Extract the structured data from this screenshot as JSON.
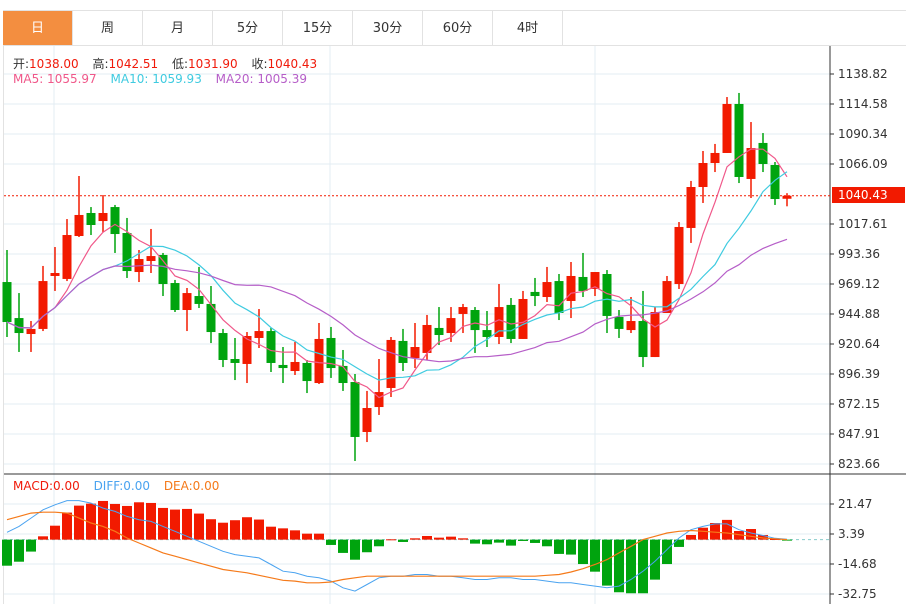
{
  "tabs": [
    {
      "label": "日",
      "active": true
    },
    {
      "label": "周"
    },
    {
      "label": "月"
    },
    {
      "label": "5分"
    },
    {
      "label": "15分"
    },
    {
      "label": "30分"
    },
    {
      "label": "60分"
    },
    {
      "label": "4时"
    }
  ],
  "ohlc_info": {
    "open_label": "开:",
    "open": "1038.00",
    "high_label": "高:",
    "high": "1042.51",
    "low_label": "低:",
    "low": "1031.90",
    "close_label": "收:",
    "close": "1040.43"
  },
  "ma_info": {
    "ma5": "MA5: 1055.97",
    "ma10": "MA10: 1059.93",
    "ma20": "MA20: 1005.39"
  },
  "macd_info": {
    "macd": "MACD:0.00",
    "diff": "DIFF:0.00",
    "dea": "DEA:0.00"
  },
  "colors": {
    "up": "#f21a00",
    "down": "#00a40e",
    "ma5": "#f0588a",
    "ma10": "#3fcbe0",
    "ma20": "#b65ec8",
    "diff": "#4aa3f0",
    "dea": "#f57a1a",
    "grid": "#e3ecf3",
    "active_tab": "#f38e40"
  },
  "price_axis": [
    "1138.82",
    "1114.58",
    "1090.34",
    "1066.09",
    "1017.61",
    "993.36",
    "969.12",
    "944.88",
    "920.64",
    "896.39",
    "872.15",
    "847.91",
    "823.66"
  ],
  "current_price": "1040.43",
  "macd_axis": [
    "21.47",
    "3.39",
    "-14.68",
    "-32.75"
  ],
  "chart_data": {
    "type": "candlestick",
    "price_range": [
      823.66,
      1138.82
    ],
    "candles": [
      [
        970.7,
        996.6,
        926.3,
        938.4
      ],
      [
        941.6,
        961.8,
        914.2,
        929.5
      ],
      [
        928.7,
        939.2,
        914.2,
        932.8
      ],
      [
        932.8,
        983.7,
        931.1,
        971.5
      ],
      [
        975.6,
        999.0,
        963.5,
        978.0
      ],
      [
        973.2,
        1021.6,
        971.5,
        1008.7
      ],
      [
        1007.9,
        1056.4,
        1007.1,
        1024.9
      ],
      [
        1026.5,
        1031.3,
        1008.7,
        1016.8
      ],
      [
        1020.0,
        1041.0,
        1011.1,
        1026.5
      ],
      [
        1031.3,
        1033.0,
        994.2,
        1009.5
      ],
      [
        1010.3,
        1022.5,
        974.0,
        979.6
      ],
      [
        978.8,
        996.6,
        970.7,
        989.3
      ],
      [
        987.7,
        1013.6,
        978.0,
        991.7
      ],
      [
        992.6,
        994.2,
        959.4,
        969.1
      ],
      [
        969.9,
        972.4,
        946.5,
        948.1
      ],
      [
        948.1,
        965.9,
        931.1,
        961.8
      ],
      [
        959.4,
        982.9,
        949.7,
        953.0
      ],
      [
        953.0,
        967.5,
        921.4,
        930.3
      ],
      [
        929.5,
        932.8,
        902.0,
        907.7
      ],
      [
        908.5,
        925.5,
        891.5,
        905.3
      ],
      [
        904.5,
        930.3,
        889.1,
        927.1
      ],
      [
        925.5,
        948.9,
        917.4,
        931.1
      ],
      [
        931.1,
        933.6,
        898.0,
        905.3
      ],
      [
        903.7,
        918.2,
        889.1,
        901.2
      ],
      [
        898.8,
        922.3,
        895.6,
        906.1
      ],
      [
        905.3,
        907.7,
        881.0,
        890.7
      ],
      [
        889.1,
        937.6,
        888.3,
        924.7
      ],
      [
        925.5,
        934.4,
        893.2,
        901.2
      ],
      [
        902.9,
        915.8,
        882.7,
        889.1
      ],
      [
        889.9,
        896.4,
        826.1,
        845.5
      ],
      [
        849.5,
        882.7,
        841.4,
        868.9
      ],
      [
        869.7,
        908.5,
        863.3,
        881.8
      ],
      [
        885.1,
        926.3,
        877.8,
        923.9
      ],
      [
        923.1,
        932.8,
        898.8,
        905.3
      ],
      [
        909.3,
        937.6,
        901.2,
        918.2
      ],
      [
        913.4,
        944.1,
        907.7,
        936.0
      ],
      [
        933.6,
        950.5,
        919.8,
        927.9
      ],
      [
        929.5,
        950.5,
        922.3,
        941.6
      ],
      [
        944.9,
        953.0,
        929.5,
        950.5
      ],
      [
        948.1,
        950.5,
        913.4,
        931.9
      ],
      [
        931.9,
        947.3,
        918.2,
        926.3
      ],
      [
        926.3,
        969.1,
        920.6,
        950.5
      ],
      [
        952.2,
        957.8,
        921.4,
        924.7
      ],
      [
        924.7,
        963.5,
        924.7,
        957.0
      ],
      [
        962.7,
        974.0,
        951.3,
        959.4
      ],
      [
        958.6,
        982.9,
        954.6,
        970.7
      ],
      [
        971.5,
        977.2,
        940.0,
        945.7
      ],
      [
        955.4,
        986.9,
        941.6,
        975.6
      ],
      [
        974.8,
        994.2,
        958.6,
        963.5
      ],
      [
        965.1,
        978.8,
        959.4,
        978.8
      ],
      [
        977.2,
        980.4,
        929.5,
        943.3
      ],
      [
        942.5,
        948.1,
        925.5,
        932.8
      ],
      [
        931.9,
        958.6,
        929.5,
        939.2
      ],
      [
        939.2,
        963.5,
        902.0,
        910.1
      ],
      [
        910.1,
        950.5,
        910.1,
        946.5
      ],
      [
        945.7,
        975.6,
        945.7,
        971.5
      ],
      [
        969.1,
        1019.2,
        965.1,
        1015.2
      ],
      [
        1014.4,
        1052.4,
        1002.3,
        1047.5
      ],
      [
        1047.5,
        1076.6,
        1034.6,
        1066.9
      ],
      [
        1066.9,
        1082.3,
        1059.6,
        1075.0
      ],
      [
        1075.0,
        1120.2,
        1075.0,
        1114.6
      ],
      [
        1114.6,
        1123.5,
        1050.7,
        1055.6
      ],
      [
        1054.0,
        1100.0,
        1038.6,
        1079.0
      ],
      [
        1083.1,
        1091.1,
        1059.6,
        1066.1
      ],
      [
        1065.3,
        1067.7,
        1033.0,
        1037.8
      ],
      [
        1038.0,
        1042.51,
        1031.9,
        1040.43
      ]
    ],
    "macd_range": [
      -32.75,
      21.47
    ],
    "macd_hist": [
      -15.7,
      -13.3,
      -7.2,
      2.0,
      8.4,
      16.3,
      20.5,
      21.7,
      23.3,
      21.5,
      20.3,
      22.5,
      22.1,
      19.1,
      18.1,
      18.5,
      15.7,
      12.3,
      10.2,
      11.7,
      13.5,
      12.1,
      7.8,
      6.8,
      5.6,
      3.6,
      3.6,
      -3.2,
      -8.0,
      -12.1,
      -7.6,
      -4.0,
      0.2,
      -1.4,
      0.8,
      2.2,
      1.2,
      1.8,
      0.8,
      -2.4,
      -2.8,
      -1.8,
      -3.6,
      -0.8,
      -2.0,
      -4.0,
      -8.6,
      -9.0,
      -14.7,
      -19.3,
      -27.7,
      -31.7,
      -32.3,
      -32.3,
      -24.1,
      -14.7,
      -4.4,
      2.8,
      7.2,
      10.0,
      11.9,
      5.2,
      6.4,
      2.8,
      0.4,
      -0.1
    ],
    "diff": [
      4.4,
      8,
      13,
      18,
      21,
      23.5,
      23.5,
      22,
      19,
      17,
      14,
      12,
      11,
      8,
      5,
      2,
      -1,
      -4,
      -7,
      -9,
      -10,
      -11,
      -15,
      -19,
      -20,
      -22,
      -23,
      -25,
      -29,
      -31,
      -27,
      -23,
      -22,
      -22,
      -21,
      -21,
      -22,
      -22,
      -23,
      -24,
      -24,
      -23,
      -23,
      -24,
      -24,
      -25,
      -26,
      -26,
      -27,
      -28,
      -29,
      -28,
      -24,
      -19,
      -13,
      -6,
      1,
      6,
      8,
      9.5,
      9.5,
      6,
      4,
      2.5,
      0.8,
      0.2
    ],
    "dea": [
      12,
      14,
      16,
      16.5,
      16.5,
      16,
      13,
      10,
      8,
      5,
      1,
      -2,
      -5,
      -8,
      -10,
      -12,
      -14,
      -16,
      -18,
      -19,
      -20,
      -21.5,
      -23,
      -24.5,
      -25,
      -26,
      -26,
      -25.5,
      -24,
      -23,
      -22,
      -22,
      -22,
      -22,
      -22,
      -22,
      -22,
      -22,
      -22,
      -22,
      -22,
      -22,
      -22,
      -22,
      -22,
      -21.5,
      -21,
      -19.5,
      -17.5,
      -15,
      -12,
      -8,
      -4,
      0,
      2,
      4,
      5,
      5.5,
      5,
      4.5,
      4,
      3,
      2,
      1,
      0.5,
      0
    ]
  }
}
